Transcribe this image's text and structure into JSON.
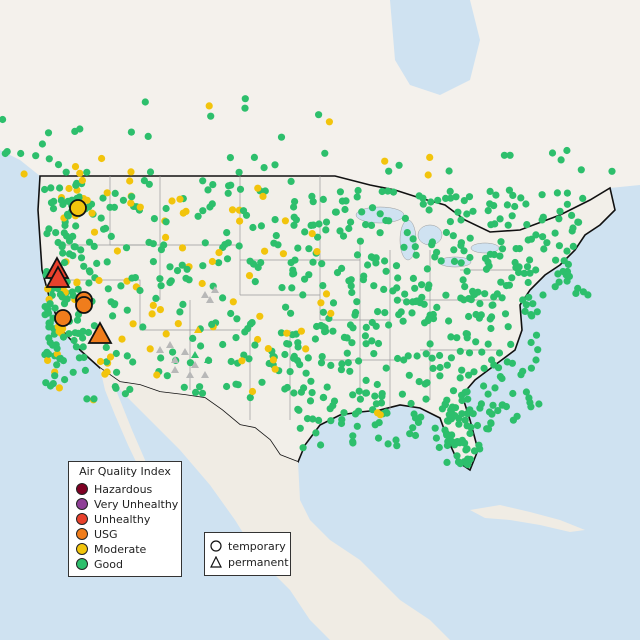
{
  "map": {
    "colors": {
      "ocean": "#cfe2f1",
      "land": "#f2efe9",
      "canada_land": "#f4f1ec",
      "mexico_land": "#f0ece4",
      "border": "#111111",
      "state_lines": "#9a9a9a",
      "no_data": "#b8b8b8"
    },
    "legend": {
      "title": "Air Quality Index",
      "categories": [
        {
          "label": "Hazardous",
          "color": "#7e0023"
        },
        {
          "label": "Very Unhealthy",
          "color": "#8f3f97"
        },
        {
          "label": "Unhealthy",
          "color": "#e8412c"
        },
        {
          "label": "USG",
          "color": "#f07d1c"
        },
        {
          "label": "Moderate",
          "color": "#f2c40c"
        },
        {
          "label": "Good",
          "color": "#2dbf6c"
        }
      ]
    },
    "monitor_types": {
      "temporary": {
        "label": "temporary",
        "icon": "circle-icon"
      },
      "permanent": {
        "label": "permanent",
        "icon": "triangle-icon"
      }
    },
    "large_markers": [
      {
        "shape": "triangle",
        "category": "Unhealthy"
      },
      {
        "shape": "triangle",
        "category": "Unhealthy"
      },
      {
        "shape": "circle",
        "category": "USG"
      },
      {
        "shape": "circle",
        "category": "USG"
      },
      {
        "shape": "circle",
        "category": "USG"
      },
      {
        "shape": "triangle",
        "category": "USG"
      },
      {
        "shape": "circle",
        "category": "Moderate"
      }
    ]
  }
}
